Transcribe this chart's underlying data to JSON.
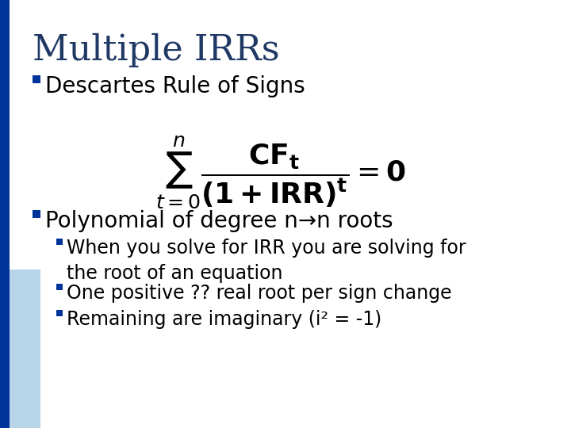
{
  "title": "Multiple IRRs",
  "title_color": "#1F3864",
  "title_fontsize": 32,
  "background_color": "#FFFFFF",
  "left_bar_color": "#003399",
  "bullet_color": "#003399",
  "bullet1_text": "Descartes Rule of Signs",
  "bullet2_text": "Polynomial of degree n→n roots",
  "sub_bullet1": "When you solve for IRR you are solving for\nthe root of an equation",
  "sub_bullet2": "One positive ?? real root per sign change",
  "sub_bullet3": "Remaining are imaginary (i² = -1)",
  "formula": "\\sum_{t=0}^{n} \\frac{\\mathbf{CF_t}}{\\mathbf{(1+IRR)^t}} = \\mathbf{0}",
  "text_color": "#000000",
  "bullet_fontsize": 20,
  "sub_bullet_fontsize": 17
}
